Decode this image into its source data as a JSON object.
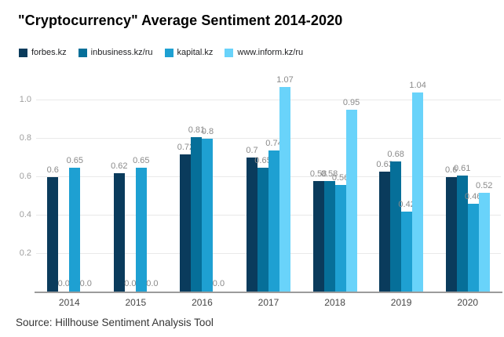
{
  "title": "\"Cryptocurrency\" Average Sentiment 2014-2020",
  "source": "Source: Hillhouse Sentiment Analysis Tool",
  "chart_data": {
    "type": "bar",
    "title": "\"Cryptocurrency\" Average Sentiment 2014-2020",
    "categories": [
      "2014",
      "2015",
      "2016",
      "2017",
      "2018",
      "2019",
      "2020"
    ],
    "series": [
      {
        "name": "forbes.kz",
        "color": "#0a3b5c",
        "values": [
          0.6,
          0.62,
          0.72,
          0.7,
          0.58,
          0.63,
          0.6
        ]
      },
      {
        "name": "inbusiness.kz/ru",
        "color": "#066f99",
        "values": [
          0.0,
          0.0,
          0.81,
          0.65,
          0.58,
          0.68,
          0.61
        ]
      },
      {
        "name": "kapital.kz",
        "color": "#1ea0d2",
        "values": [
          0.65,
          0.65,
          0.8,
          0.74,
          0.56,
          0.42,
          0.46
        ]
      },
      {
        "name": "www.inform.kz/ru",
        "color": "#69d3fa",
        "values": [
          0.0,
          0.0,
          0.0,
          1.07,
          0.95,
          1.04,
          0.52
        ]
      }
    ],
    "data_labels": [
      [
        "0.6",
        "0.0",
        "0.65",
        "0.0"
      ],
      [
        "0.62",
        "0.0",
        "0.65",
        "0.0"
      ],
      [
        "0.72",
        "0.81",
        "0.8",
        "0.0"
      ],
      [
        "0.7",
        "0.65",
        "0.74",
        "1.07"
      ],
      [
        "0.58",
        "0.58",
        "0.56",
        "0.95"
      ],
      [
        "0.63",
        "0.68",
        "0.42",
        "1.04"
      ],
      [
        "0.6",
        "0.61",
        "0.46",
        "0.52"
      ]
    ],
    "xlabel": "",
    "ylabel": "",
    "ylim": [
      0,
      1.1
    ],
    "yticks": [
      0.2,
      0.4,
      0.6,
      0.8,
      1.0
    ],
    "grid": true,
    "legend_position": "top"
  }
}
